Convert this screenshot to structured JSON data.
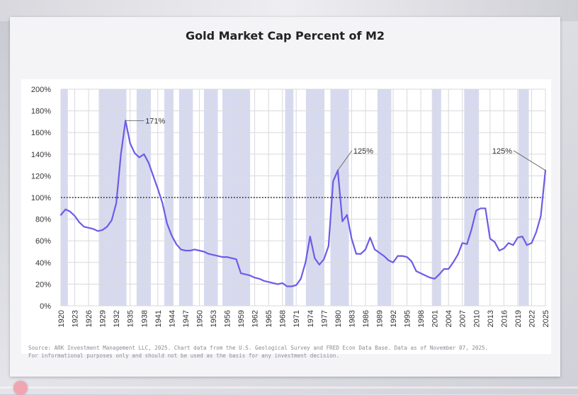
{
  "page": {
    "title": "Gold Market Cap Percent of M2",
    "source_line1": "Source: ARK Investment Management LLC, 2025. Chart data from the U.S. Geological Survey and FRED Econ Data Base. Data as of November 07, 2025.",
    "source_line2": "For informational purposes only and should not be used as the basis for any investment decision."
  },
  "colors": {
    "line": "#6c5ce7",
    "shade": "#d7daef",
    "grid": "#d9d9de",
    "reference": "#111111",
    "text": "#333333"
  },
  "chart_data": {
    "type": "line",
    "title": "Gold Market Cap Percent of M2",
    "xlabel": "",
    "ylabel": "",
    "xlim": [
      1920,
      2025
    ],
    "ylim": [
      0,
      200
    ],
    "y_ticks": [
      0,
      20,
      40,
      60,
      80,
      100,
      120,
      140,
      160,
      180,
      200
    ],
    "y_tick_labels": [
      "0%",
      "20%",
      "40%",
      "60%",
      "80%",
      "100%",
      "120%",
      "140%",
      "160%",
      "180%",
      "200%"
    ],
    "x_ticks": [
      1920,
      1923,
      1926,
      1929,
      1932,
      1935,
      1938,
      1941,
      1944,
      1947,
      1950,
      1953,
      1956,
      1959,
      1962,
      1965,
      1968,
      1971,
      1974,
      1977,
      1980,
      1983,
      1986,
      1989,
      1992,
      1995,
      1998,
      2001,
      2004,
      2007,
      2010,
      2013,
      2016,
      2019,
      2022,
      2025
    ],
    "grid": true,
    "reference_line": {
      "y": 100,
      "style": "dotted"
    },
    "shaded_periods": [
      [
        1920,
        1921.5
      ],
      [
        1928.2,
        1934.2
      ],
      [
        1936.4,
        1939.5
      ],
      [
        1942.4,
        1944.4
      ],
      [
        1945.6,
        1948.6
      ],
      [
        1951,
        1954
      ],
      [
        1955,
        1961
      ],
      [
        1968.6,
        1970.4
      ],
      [
        1973.1,
        1977.1
      ],
      [
        1978.4,
        1982.4
      ],
      [
        1988.6,
        1991.6
      ],
      [
        2000.4,
        2002.4
      ],
      [
        2007.4,
        2010.6
      ],
      [
        2019.2,
        2021.4
      ]
    ],
    "series": [
      {
        "name": "Gold Market Cap % of M2",
        "x": [
          1920,
          1921,
          1922,
          1923,
          1924,
          1925,
          1926,
          1927,
          1928,
          1929,
          1930,
          1931,
          1932,
          1933,
          1934,
          1935,
          1936,
          1937,
          1938,
          1939,
          1940,
          1941,
          1942,
          1943,
          1944,
          1945,
          1946,
          1947,
          1948,
          1949,
          1950,
          1951,
          1952,
          1953,
          1954,
          1955,
          1956,
          1957,
          1958,
          1959,
          1960,
          1961,
          1962,
          1963,
          1964,
          1965,
          1966,
          1967,
          1968,
          1969,
          1970,
          1971,
          1972,
          1973,
          1974,
          1975,
          1976,
          1977,
          1978,
          1979,
          1980,
          1981,
          1982,
          1983,
          1984,
          1985,
          1986,
          1987,
          1988,
          1989,
          1990,
          1991,
          1992,
          1993,
          1994,
          1995,
          1996,
          1997,
          1998,
          1999,
          2000,
          2001,
          2002,
          2003,
          2004,
          2005,
          2006,
          2007,
          2008,
          2009,
          2010,
          2011,
          2012,
          2013,
          2014,
          2015,
          2016,
          2017,
          2018,
          2019,
          2020,
          2021,
          2022,
          2023,
          2024,
          2025
        ],
        "values": [
          84,
          89,
          87,
          83,
          77,
          73,
          72,
          71,
          69,
          70,
          73,
          79,
          95,
          140,
          171,
          150,
          141,
          137,
          140,
          132,
          120,
          108,
          95,
          76,
          65,
          57,
          52,
          51,
          51,
          52,
          51,
          50,
          48,
          47,
          46,
          45,
          45,
          44,
          43,
          30,
          29,
          28,
          26,
          25,
          23,
          22,
          21,
          20,
          21,
          18,
          18,
          19,
          25,
          40,
          64,
          44,
          38,
          43,
          55,
          115,
          125,
          78,
          84,
          62,
          48,
          48,
          52,
          63,
          52,
          49,
          46,
          42,
          40,
          46,
          46,
          45,
          41,
          32,
          30,
          28,
          26,
          25,
          29,
          34,
          34,
          40,
          47,
          58,
          57,
          71,
          88,
          90,
          90,
          62,
          59,
          51,
          53,
          58,
          56,
          63,
          64,
          56,
          58,
          68,
          83,
          125
        ]
      }
    ],
    "annotations": [
      {
        "text": "171%",
        "x": 1934,
        "y": 171
      },
      {
        "text": "125%",
        "x": 1980,
        "y": 125
      },
      {
        "text": "125%",
        "x": 2025,
        "y": 125
      }
    ]
  }
}
